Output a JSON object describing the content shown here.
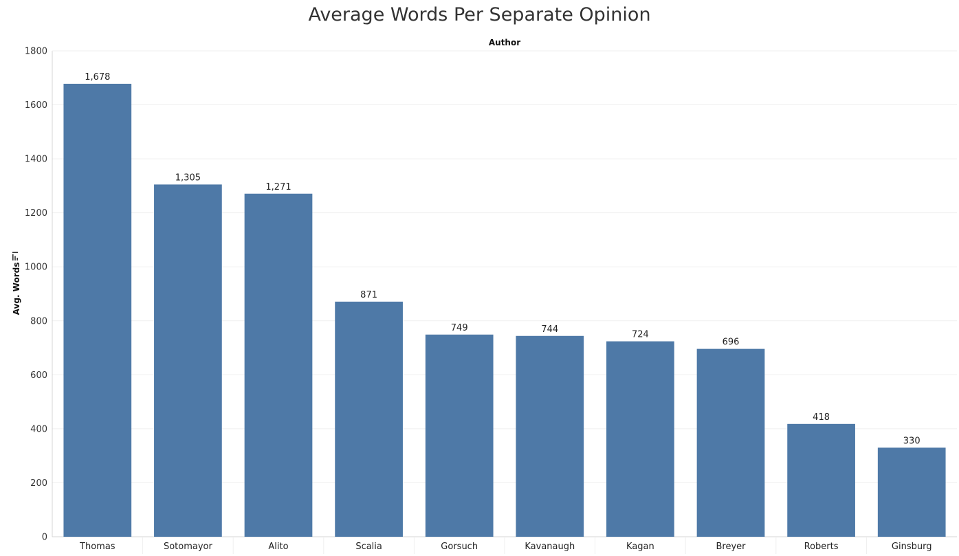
{
  "colors": {
    "bar": "#4e79a7",
    "grid": "#efefef",
    "axis": "#d4d4d4",
    "text": "#333333"
  },
  "chart_data": {
    "type": "bar",
    "title": "Average Words Per Separate Opinion",
    "xlabel": "Author",
    "ylabel": "Avg. Words",
    "sort_icon": "sort-descending-icon",
    "categories": [
      "Thomas",
      "Sotomayor",
      "Alito",
      "Scalia",
      "Gorsuch",
      "Kavanaugh",
      "Kagan",
      "Breyer",
      "Roberts",
      "Ginsburg"
    ],
    "values": [
      1678,
      1305,
      1271,
      871,
      749,
      744,
      724,
      696,
      418,
      330
    ],
    "value_labels": [
      "1,678",
      "1,305",
      "1,271",
      "871",
      "749",
      "744",
      "724",
      "696",
      "418",
      "330"
    ],
    "ylim": [
      0,
      1800
    ],
    "yticks": [
      0,
      200,
      400,
      600,
      800,
      1000,
      1200,
      1400,
      1600,
      1800
    ],
    "grid": true,
    "legend": "none"
  }
}
